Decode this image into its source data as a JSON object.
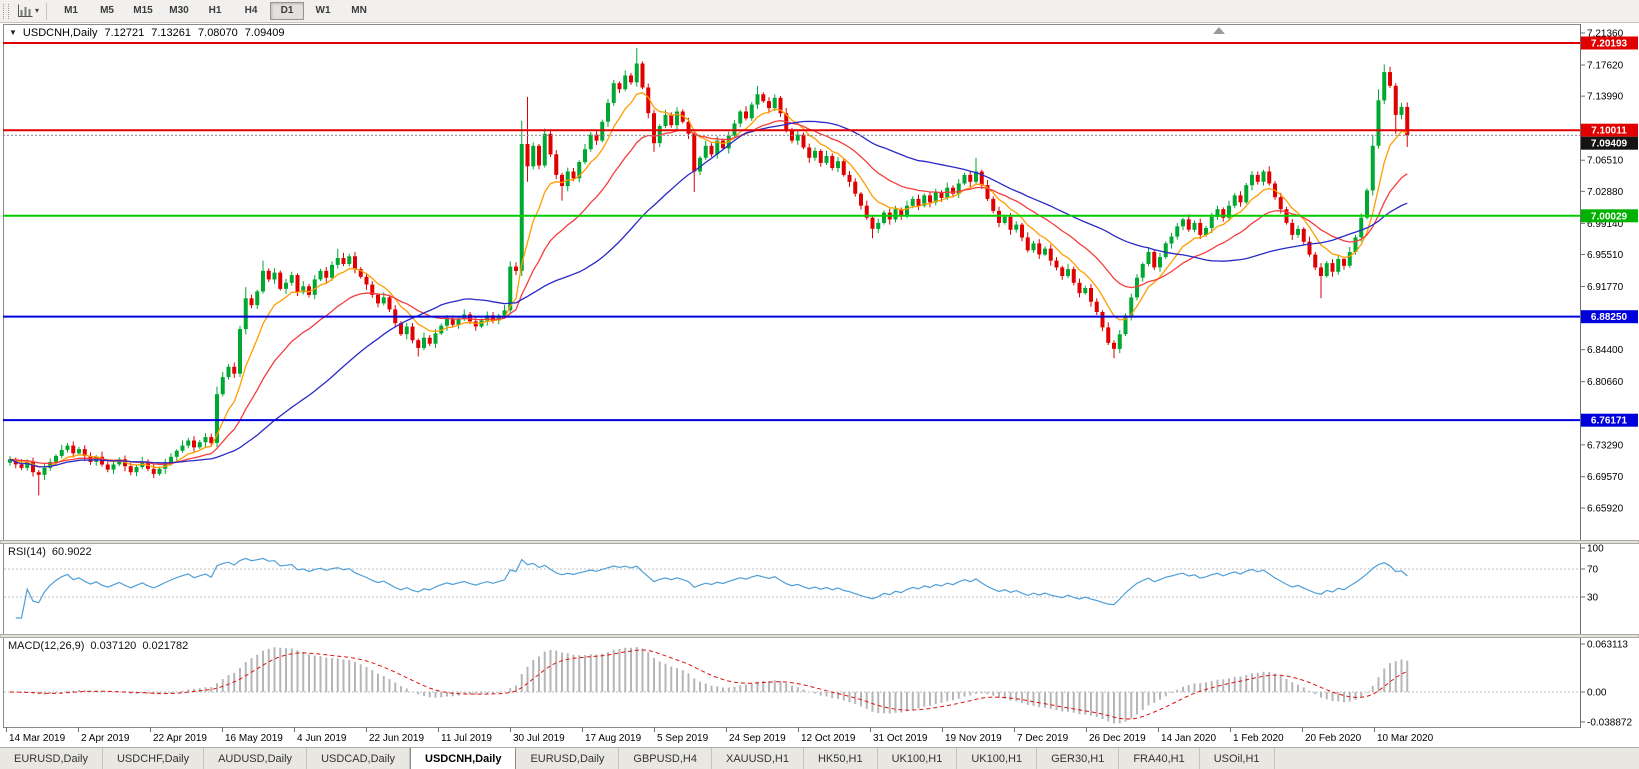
{
  "toolbar": {
    "periods": [
      "M1",
      "M5",
      "M15",
      "M30",
      "H1",
      "H4",
      "D1",
      "W1",
      "MN"
    ],
    "active_period": "D1",
    "caret": "▾"
  },
  "chart_header": {
    "collapse_arrow": "▼",
    "symbol": "USDCNH,Daily",
    "open": "7.12721",
    "high": "7.13261",
    "low": "7.08070",
    "close": "7.09409"
  },
  "price_axis": {
    "labels": [
      "7.21360",
      "7.17620",
      "7.13990",
      "7.06510",
      "7.02880",
      "6.99140",
      "6.95510",
      "6.91770",
      "6.84400",
      "6.80660",
      "6.73290",
      "6.69570",
      "6.65920"
    ],
    "badges": [
      {
        "text": "7.20193",
        "price": 7.20193,
        "color": "#e00000"
      },
      {
        "text": "7.10011",
        "price": 7.10011,
        "color": "#e00000"
      },
      {
        "text": "7.09409",
        "price": 7.09409,
        "color": "#141414"
      },
      {
        "text": "7.00029",
        "price": 7.00029,
        "color": "#00b300"
      },
      {
        "text": "6.88250",
        "price": 6.8825,
        "color": "#0000dc"
      },
      {
        "text": "6.76171",
        "price": 6.76171,
        "color": "#0000dc"
      }
    ]
  },
  "time_axis": {
    "labels": [
      "14 Mar 2019",
      "2 Apr 2019",
      "22 Apr 2019",
      "16 May 2019",
      "4 Jun 2019",
      "22 Jun 2019",
      "11 Jul 2019",
      "30 Jul 2019",
      "17 Aug 2019",
      "5 Sep 2019",
      "24 Sep 2019",
      "12 Oct 2019",
      "31 Oct 2019",
      "19 Nov 2019",
      "7 Dec 2019",
      "26 Dec 2019",
      "14 Jan 2020",
      "1 Feb 2020",
      "20 Feb 2020",
      "10 Mar 2020"
    ]
  },
  "chart_data": {
    "type": "candlestick",
    "symbol": "USDCNH",
    "timeframe": "Daily",
    "y_range": {
      "top": 7.2241,
      "bottom": 6.6218
    },
    "first_open": 6.712,
    "closes": [
      6.716,
      6.71,
      6.706,
      6.713,
      6.701,
      6.698,
      6.706,
      6.713,
      6.72,
      6.727,
      6.732,
      6.723,
      6.728,
      6.72,
      6.713,
      6.719,
      6.71,
      6.704,
      6.71,
      6.716,
      6.708,
      6.701,
      6.707,
      6.713,
      6.705,
      6.699,
      6.705,
      6.712,
      6.719,
      6.726,
      6.732,
      6.738,
      6.73,
      6.736,
      6.742,
      6.735,
      6.792,
      6.812,
      6.824,
      6.816,
      6.868,
      6.904,
      6.896,
      6.912,
      6.936,
      6.926,
      6.934,
      6.915,
      6.922,
      6.931,
      6.911,
      6.918,
      6.908,
      6.926,
      6.936,
      6.928,
      6.943,
      6.951,
      6.944,
      6.953,
      6.938,
      6.929,
      6.92,
      6.908,
      6.898,
      6.905,
      6.891,
      6.875,
      6.862,
      6.871,
      6.855,
      6.846,
      6.858,
      6.851,
      6.863,
      6.872,
      6.88,
      6.873,
      6.88,
      6.885,
      6.877,
      6.871,
      6.878,
      6.884,
      6.878,
      6.884,
      6.89,
      6.941,
      6.936,
      7.084,
      7.058,
      7.082,
      7.059,
      7.096,
      7.072,
      7.048,
      7.035,
      7.052,
      7.044,
      7.063,
      7.078,
      7.095,
      7.088,
      7.11,
      7.132,
      7.155,
      7.148,
      7.164,
      7.156,
      7.178,
      7.15,
      7.12,
      7.085,
      7.105,
      7.118,
      7.106,
      7.122,
      7.11,
      7.096,
      7.052,
      7.068,
      7.082,
      7.072,
      7.088,
      7.079,
      7.094,
      7.108,
      7.122,
      7.114,
      7.13,
      7.142,
      7.134,
      7.126,
      7.138,
      7.12,
      7.1,
      7.088,
      7.095,
      7.08,
      7.068,
      7.076,
      7.062,
      7.07,
      7.056,
      7.064,
      7.048,
      7.04,
      7.026,
      7.012,
      6.998,
      6.985,
      6.992,
      7.004,
      6.996,
      7.008,
      7.0,
      7.012,
      7.02,
      7.012,
      7.024,
      7.016,
      7.028,
      7.021,
      7.033,
      7.026,
      7.038,
      7.048,
      7.04,
      7.052,
      7.036,
      7.02,
      7.006,
      6.992,
      6.999,
      6.984,
      6.99,
      6.975,
      6.96,
      6.968,
      6.955,
      6.962,
      6.948,
      6.94,
      6.93,
      6.938,
      6.922,
      6.91,
      6.916,
      6.9,
      6.888,
      6.87,
      6.852,
      6.845,
      6.862,
      6.884,
      6.905,
      6.928,
      6.944,
      6.958,
      6.94,
      6.952,
      6.968,
      6.976,
      6.988,
      6.996,
      6.984,
      6.992,
      6.978,
      6.986,
      6.999,
      7.008,
      6.998,
      7.012,
      7.024,
      7.016,
      7.036,
      7.048,
      7.04,
      7.052,
      7.038,
      7.022,
      7.008,
      6.992,
      6.978,
      6.985,
      6.97,
      6.955,
      6.94,
      6.93,
      6.945,
      6.935,
      6.95,
      6.942,
      6.958,
      6.975,
      6.998,
      7.03,
      7.082,
      7.135,
      7.168,
      7.152,
      7.118,
      7.1272,
      7.0941
    ],
    "wick_high_pattern": [
      0.004,
      0.002,
      0.006,
      0.003,
      0.005,
      0.0025,
      0.0045
    ],
    "wick_low_pattern": [
      0.003,
      0.005,
      0.002,
      0.006,
      0.0035,
      0.0045,
      0.0025
    ],
    "wick_overrides": {
      "5": [
        null,
        6.674
      ],
      "36": [
        6.801,
        null
      ],
      "40": [
        6.872,
        6.812
      ],
      "41": [
        6.917,
        null
      ],
      "44": [
        6.948,
        null
      ],
      "57": [
        6.962,
        null
      ],
      "71": [
        null,
        6.836
      ],
      "87": [
        6.947,
        6.886
      ],
      "89": [
        7.111,
        6.93
      ],
      "90": [
        7.139,
        7.04
      ],
      "96": [
        null,
        7.018
      ],
      "109": [
        7.196,
        null
      ],
      "112": [
        null,
        7.075
      ],
      "119": [
        null,
        7.028
      ],
      "130": [
        7.152,
        null
      ],
      "150": [
        null,
        6.974
      ],
      "168": [
        7.068,
        null
      ],
      "192": [
        null,
        6.834
      ],
      "228": [
        null,
        6.904
      ],
      "237": [
        7.095,
        null
      ],
      "238": [
        7.148,
        null
      ],
      "239": [
        7.177,
        null
      ],
      "241": [
        null,
        7.096
      ],
      "243": [
        7.1326,
        7.0807
      ]
    },
    "colors": {
      "up": "#00a832",
      "down": "#e00000"
    },
    "moving_averages": [
      {
        "type": "ema",
        "period": 8,
        "color": "#ff9d00"
      },
      {
        "type": "ema",
        "period": 21,
        "color": "#f53d3d"
      },
      {
        "type": "sma",
        "period": 40,
        "color": "#2929c8"
      }
    ],
    "horizontal_lines": [
      {
        "price": 7.20193,
        "color": "#e00000",
        "width": 2
      },
      {
        "price": 7.10011,
        "color": "#e00000",
        "width": 2
      },
      {
        "price": 7.00029,
        "color": "#00cc00",
        "width": 2
      },
      {
        "price": 6.8825,
        "color": "#0000dc",
        "width": 2
      },
      {
        "price": 6.76171,
        "color": "#0000dc",
        "width": 2
      }
    ],
    "bid_line": {
      "price": 7.09409,
      "color": "#888888"
    }
  },
  "rsi_panel": {
    "label": "RSI(14)",
    "value": "60.9022",
    "period": 14,
    "axis_labels": [
      "100",
      "70",
      "30"
    ],
    "axis_values": [
      100,
      70,
      30
    ],
    "levels": [
      70,
      30
    ],
    "line_color": "#4f9fd8"
  },
  "macd_panel": {
    "label": "MACD(12,26,9)",
    "value_main": "0.037120",
    "value_signal": "0.021782",
    "fast": 12,
    "slow": 26,
    "signal": 9,
    "axis_labels": [
      "0.063113",
      "0.00",
      "-0.038872"
    ],
    "axis_values": [
      0.063113,
      0,
      -0.038872
    ],
    "histogram_color": "#b6b6b6",
    "signal_color": "#e01010"
  },
  "tabs": {
    "active_index": 4,
    "items": [
      "EURUSD,Daily",
      "USDCHF,Daily",
      "AUDUSD,Daily",
      "USDCAD,Daily",
      "USDCNH,Daily",
      "EURUSD,Daily",
      "GBPUSD,H4",
      "XAUUSD,H1",
      "HK50,H1",
      "UK100,H1",
      "UK100,H1",
      "GER30,H1",
      "FRA40,H1",
      "USOil,H1"
    ]
  }
}
